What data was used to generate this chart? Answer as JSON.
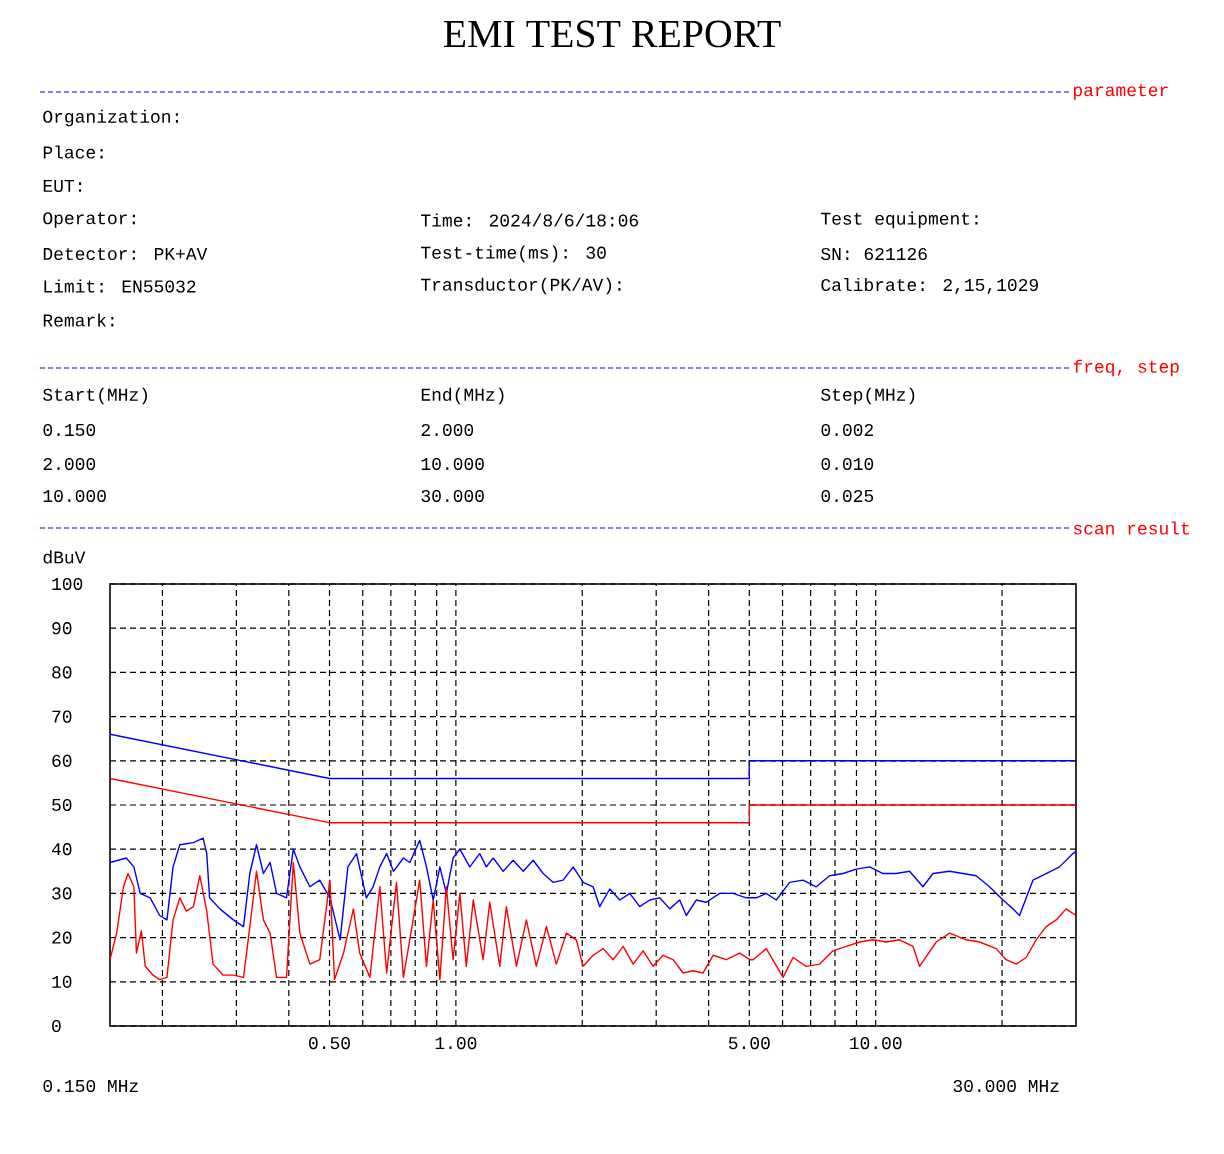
{
  "chart_data": {
    "type": "line",
    "title": "EMI TEST REPORT",
    "ylabel": "dBuV",
    "xlim": [
      0.15,
      30
    ],
    "ylim": [
      0,
      100
    ],
    "log": "x",
    "grid": true,
    "xticks": [
      {
        "value": 0.2,
        "label": null
      },
      {
        "value": 0.3,
        "label": null
      },
      {
        "value": 0.4,
        "label": null
      },
      {
        "value": 0.5,
        "label": "0.50"
      },
      {
        "value": 0.6,
        "label": null
      },
      {
        "value": 0.7,
        "label": null
      },
      {
        "value": 0.8,
        "label": null
      },
      {
        "value": 0.9,
        "label": null
      },
      {
        "value": 1,
        "label": "1.00"
      },
      {
        "value": 2,
        "label": null
      },
      {
        "value": 3,
        "label": null
      },
      {
        "value": 4,
        "label": null
      },
      {
        "value": 5,
        "label": "5.00"
      },
      {
        "value": 6,
        "label": null
      },
      {
        "value": 7,
        "label": null
      },
      {
        "value": 8,
        "label": null
      },
      {
        "value": 9,
        "label": null
      },
      {
        "value": 10,
        "label": "10.00"
      },
      {
        "value": 20,
        "label": null
      }
    ],
    "yticks": [
      0,
      10,
      20,
      30,
      40,
      50,
      60,
      70,
      80,
      90,
      100
    ],
    "annotations": [
      "parameter",
      "Organization:",
      "Place:",
      "EUT:",
      "Operator:",
      "Time: 2024/8/6/18:06",
      "Test equipment:",
      "Detector: PK+AV",
      "Test-time(ms): 30",
      "SN: 621126",
      "Limit: EN55032",
      "Transductor(PK/AV):",
      "Calibrate: 2,15,1029",
      "Remark:",
      "freq, step",
      "Start(MHz)",
      "End(MHz)",
      "Step(MHz)",
      "0.150",
      "2.000",
      "0.002",
      "2.000",
      "10.000",
      "0.010",
      "10.000",
      "30.000",
      "0.025",
      "scan result",
      "0.150 MHz",
      "30.000 MHz"
    ],
    "series": [
      {
        "color": "#0000ff",
        "x": [
          0.15,
          0.5,
          5,
          5,
          30
        ],
        "values": [
          66,
          56,
          56,
          60,
          60
        ]
      },
      {
        "color": "#ff0000",
        "x": [
          0.15,
          0.5,
          5,
          5,
          30
        ],
        "values": [
          56,
          46,
          46,
          50,
          50
        ]
      },
      {
        "color": "#0000ff",
        "x": [
          0.15,
          0.164,
          0.171,
          0.177,
          0.187,
          0.197,
          0.205,
          0.212,
          0.22,
          0.237,
          0.25,
          0.255,
          0.259,
          0.274,
          0.295,
          0.312,
          0.323,
          0.335,
          0.348,
          0.361,
          0.374,
          0.395,
          0.41,
          0.425,
          0.449,
          0.474,
          0.501,
          0.53,
          0.553,
          0.58,
          0.612,
          0.635,
          0.659,
          0.684,
          0.71,
          0.75,
          0.777,
          0.82,
          0.851,
          0.883,
          0.916,
          0.949,
          0.985,
          1.022,
          1.079,
          1.14,
          1.182,
          1.227,
          1.296,
          1.369,
          1.447,
          1.528,
          1.614,
          1.704,
          1.801,
          1.903,
          2.01,
          2.123,
          2.201,
          2.326,
          2.457,
          2.595,
          2.741,
          2.896,
          3.059,
          3.231,
          3.413,
          3.539,
          3.738,
          3.949,
          4.251,
          4.574,
          4.918,
          5.194,
          5.487,
          5.797,
          6.237,
          6.713,
          7.218,
          7.767,
          8.359,
          8.986,
          9.672,
          10.41,
          11.19,
          12.04,
          12.96,
          13.69,
          15.0,
          16.14,
          17.35,
          18.67,
          20.1,
          21.23,
          22.01,
          23.69,
          25.47,
          27.41,
          29.5,
          30
        ],
        "values": [
          37,
          38,
          36,
          30,
          29,
          25,
          24,
          36,
          41,
          41.5,
          42.5,
          39,
          29,
          26.5,
          24,
          22.5,
          34.5,
          41,
          34.5,
          37,
          30,
          29,
          40,
          36,
          31.5,
          33,
          29,
          19.5,
          36,
          39,
          29,
          31.5,
          36,
          39,
          35,
          38,
          37,
          42,
          36,
          28.5,
          36,
          30,
          38,
          40,
          36,
          39,
          36,
          38,
          35,
          37.5,
          35,
          37.5,
          34.5,
          32.5,
          33,
          36,
          32.5,
          31.5,
          27,
          31,
          28.5,
          30,
          27,
          28.5,
          29,
          26.5,
          28.5,
          25,
          28.5,
          28,
          30,
          30,
          29,
          29,
          30,
          28.5,
          32.5,
          33,
          31.5,
          34,
          34.5,
          35.5,
          36,
          34.5,
          34.5,
          35,
          31.5,
          34.5,
          35,
          34.5,
          34,
          31.5,
          28.5,
          26.5,
          25,
          33,
          34.5,
          36,
          39,
          39.5
        ]
      },
      {
        "color": "#ff0000",
        "x": [
          0.15,
          0.1556,
          0.1615,
          0.1656,
          0.171,
          0.1734,
          0.1782,
          0.182,
          0.19,
          0.197,
          0.205,
          0.212,
          0.22,
          0.228,
          0.237,
          0.2455,
          0.255,
          0.264,
          0.279,
          0.295,
          0.312,
          0.323,
          0.335,
          0.348,
          0.361,
          0.374,
          0.395,
          0.41,
          0.425,
          0.449,
          0.474,
          0.501,
          0.514,
          0.54,
          0.57,
          0.59,
          0.624,
          0.659,
          0.684,
          0.722,
          0.75,
          0.791,
          0.82,
          0.851,
          0.883,
          0.916,
          0.949,
          0.985,
          1.022,
          1.059,
          1.1,
          1.161,
          1.204,
          1.272,
          1.319,
          1.394,
          1.472,
          1.555,
          1.643,
          1.735,
          1.833,
          1.936,
          2.01,
          2.123,
          2.243,
          2.37,
          2.503,
          2.644,
          2.793,
          2.95,
          3.116,
          3.292,
          3.478,
          3.673,
          3.879,
          4.1,
          4.408,
          4.743,
          5.01,
          5.104,
          5.487,
          6.017,
          6.355,
          6.833,
          7.353,
          7.913,
          8.509,
          9.156,
          9.853,
          10.59,
          11.4,
          12.27,
          12.72,
          13.94,
          15.0,
          16.43,
          17.68,
          19.36,
          20.45,
          21.61,
          22.83,
          24.11,
          25.47,
          26.91,
          28.42,
          30
        ],
        "values": [
          15,
          21,
          31.5,
          34.5,
          31.5,
          16.5,
          21.5,
          13.5,
          11.5,
          10.5,
          11,
          24,
          29,
          26,
          27,
          34,
          26,
          14,
          11.5,
          11.5,
          11,
          22.5,
          35,
          24,
          21,
          11,
          11,
          37,
          21,
          14,
          15,
          33,
          10.5,
          16.5,
          26.5,
          16.5,
          11,
          31.5,
          12,
          32.5,
          11,
          24,
          33,
          13.5,
          28.5,
          10.5,
          31.5,
          15,
          30,
          13.5,
          28.5,
          15,
          28,
          13.5,
          27,
          13.5,
          24,
          13.5,
          22.5,
          14,
          21,
          19.5,
          13.5,
          16,
          17.5,
          15,
          18,
          14,
          17,
          13.5,
          16,
          15,
          12,
          12.5,
          12,
          16,
          15,
          16.5,
          15,
          15,
          17.5,
          11,
          15.5,
          13.5,
          14,
          17,
          18,
          19,
          19.5,
          19,
          19.5,
          18,
          13.5,
          19,
          21,
          19.5,
          19,
          17.5,
          15,
          14,
          15.5,
          19.5,
          22.5,
          24,
          26.5,
          25
        ]
      }
    ]
  }
}
